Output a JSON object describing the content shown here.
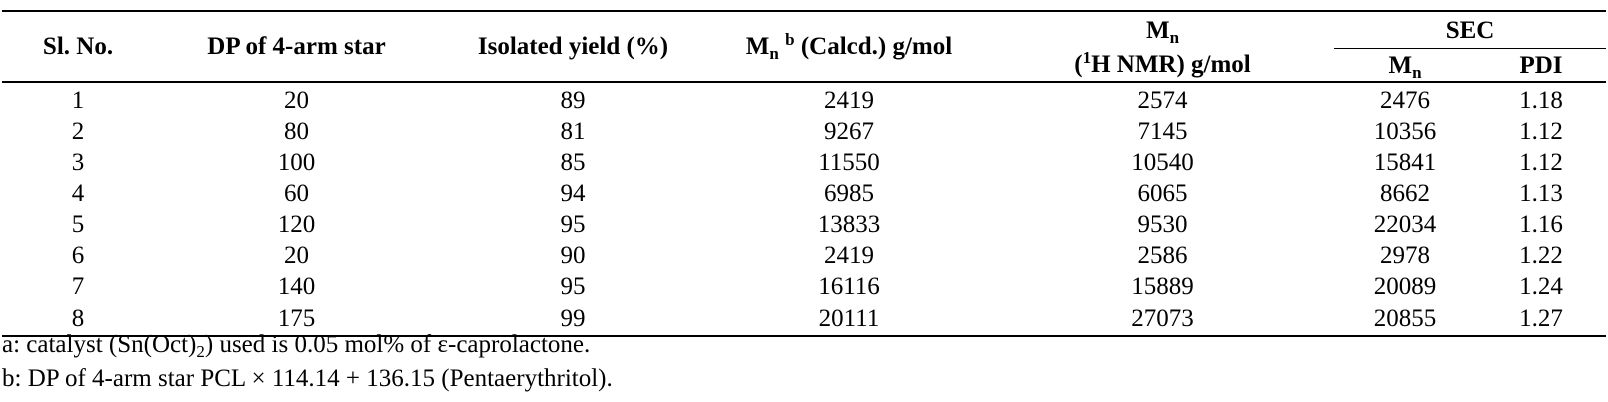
{
  "table": {
    "headers": {
      "sl_no": "Sl. No.",
      "dp": "DP of 4-arm star",
      "yield": "Isolated yield (%)",
      "mn_calc_symbol": "M",
      "mn_calc_sub": "n",
      "mn_calc_sup": "b",
      "mn_calc_rest": " (Calcd.) g/mol",
      "mn_nmr_symbol": "M",
      "mn_nmr_sub": "n",
      "mn_nmr_open": "(",
      "mn_nmr_sup": "1",
      "mn_nmr_rest": "H NMR) g/mol",
      "sec": "SEC",
      "sec_mn_symbol": "M",
      "sec_mn_sub": "n",
      "sec_pdi": "PDI"
    },
    "rows": [
      {
        "sl": "1",
        "dp": "20",
        "yield": "89",
        "mn_calc": "2419",
        "mn_nmr": "2574",
        "sec_mn": "2476",
        "pdi": "1.18"
      },
      {
        "sl": "2",
        "dp": "80",
        "yield": "81",
        "mn_calc": "9267",
        "mn_nmr": "7145",
        "sec_mn": "10356",
        "pdi": "1.12"
      },
      {
        "sl": "3",
        "dp": "100",
        "yield": "85",
        "mn_calc": "11550",
        "mn_nmr": "10540",
        "sec_mn": "15841",
        "pdi": "1.12"
      },
      {
        "sl": "4",
        "dp": "60",
        "yield": "94",
        "mn_calc": "6985",
        "mn_nmr": "6065",
        "sec_mn": "8662",
        "pdi": "1.13"
      },
      {
        "sl": "5",
        "dp": "120",
        "yield": "95",
        "mn_calc": "13833",
        "mn_nmr": "9530",
        "sec_mn": "22034",
        "pdi": "1.16"
      },
      {
        "sl": "6",
        "dp": "20",
        "yield": "90",
        "mn_calc": "2419",
        "mn_nmr": "2586",
        "sec_mn": "2978",
        "pdi": "1.22"
      },
      {
        "sl": "7",
        "dp": "140",
        "yield": "95",
        "mn_calc": "16116",
        "mn_nmr": "15889",
        "sec_mn": "20089",
        "pdi": "1.24"
      },
      {
        "sl": "8",
        "dp": "175",
        "yield": "99",
        "mn_calc": "20111",
        "mn_nmr": "27073",
        "sec_mn": "20855",
        "pdi": "1.27"
      }
    ]
  },
  "notes": {
    "a_prefix": "a: catalyst (Sn(Oct)",
    "a_sub": "2",
    "a_suffix": ") used is 0.05 mol% of ε-caprolactone.",
    "b": "b: DP of 4-arm star PCL × 114.14 + 136.15 (Pentaerythritol)."
  }
}
